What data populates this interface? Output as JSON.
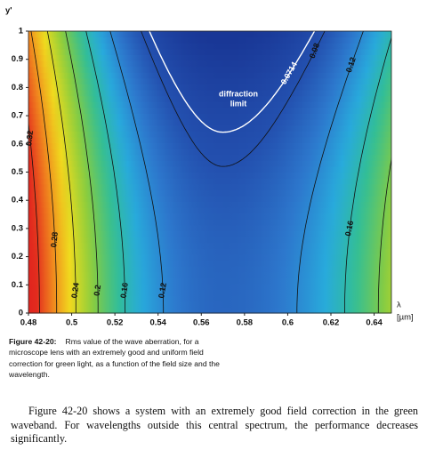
{
  "chart_data": {
    "type": "contour",
    "y_label": "y'",
    "x_label": "λ",
    "x_unit": "[µm]",
    "xlim": [
      0.48,
      0.648
    ],
    "ylim": [
      0,
      1
    ],
    "xticks": [
      0.48,
      0.5,
      0.52,
      0.54,
      0.56,
      0.58,
      0.6,
      0.62,
      0.64
    ],
    "yticks": [
      0,
      0.1,
      0.2,
      0.3,
      0.4,
      0.5,
      0.6,
      0.7,
      0.8,
      0.9,
      1
    ],
    "contour_levels": [
      0.32,
      0.28,
      0.24,
      0.2,
      0.16,
      0.12,
      0.08,
      0.0714
    ],
    "annotation": [
      "diffraction",
      "limit"
    ]
  },
  "caption": {
    "label": "Figure 42-20:",
    "text": "Rms value of the wave aberration, for a microscope lens with an extremely good and uniform field correction for green light, as a function of the field size and the wavelength."
  },
  "body": "Figure 42-20 shows a system with an extremely good field correction in the green waveband. For wavelengths outside this central spectrum, the performance decreases significantly."
}
